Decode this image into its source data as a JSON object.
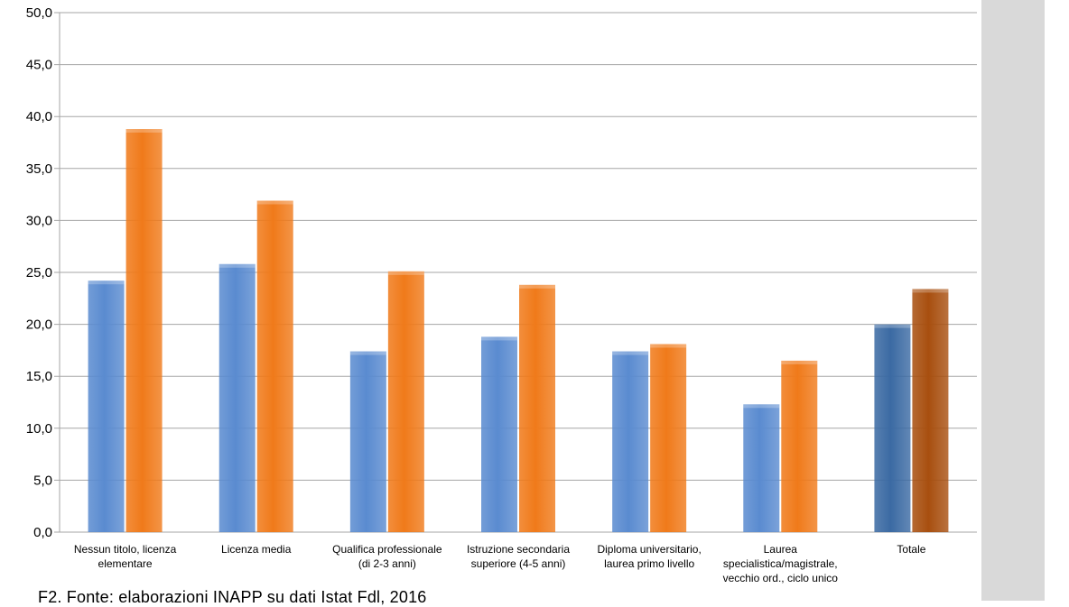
{
  "caption": "F2. Fonte: elaborazioni INAPP su dati Istat Fdl, 2016",
  "colors": {
    "series_blue": "#5a8bd0",
    "series_orange": "#f07a1a",
    "total_blue": "#3b6aa3",
    "total_orange": "#a84f0f",
    "gridline": "#a6a6a6",
    "side_strip": "#d9d9d9"
  },
  "chart_data": {
    "type": "bar",
    "ylim": [
      0,
      50
    ],
    "ytick_step": 5,
    "ytick_labels": [
      "0,0",
      "5,0",
      "10,0",
      "15,0",
      "20,0",
      "25,0",
      "30,0",
      "35,0",
      "40,0",
      "45,0",
      "50,0"
    ],
    "grid": true,
    "legend": "none",
    "categories": [
      [
        "Nessun titolo, licenza",
        "elementare"
      ],
      [
        "Licenza media"
      ],
      [
        "Qualifica professionale",
        "(di 2-3 anni)"
      ],
      [
        "Istruzione secondaria",
        "superiore (4-5 anni)"
      ],
      [
        "Diploma universitario,",
        "laurea primo livello"
      ],
      [
        "Laurea",
        "specialistica/magistrale,",
        "vecchio ord., ciclo unico"
      ],
      [
        "Totale"
      ]
    ],
    "series": [
      {
        "values": [
          24.2,
          25.8,
          17.4,
          18.8,
          17.4,
          12.3,
          20.0
        ]
      },
      {
        "values": [
          38.8,
          31.9,
          25.1,
          23.8,
          18.1,
          16.5,
          23.4
        ]
      }
    ]
  }
}
